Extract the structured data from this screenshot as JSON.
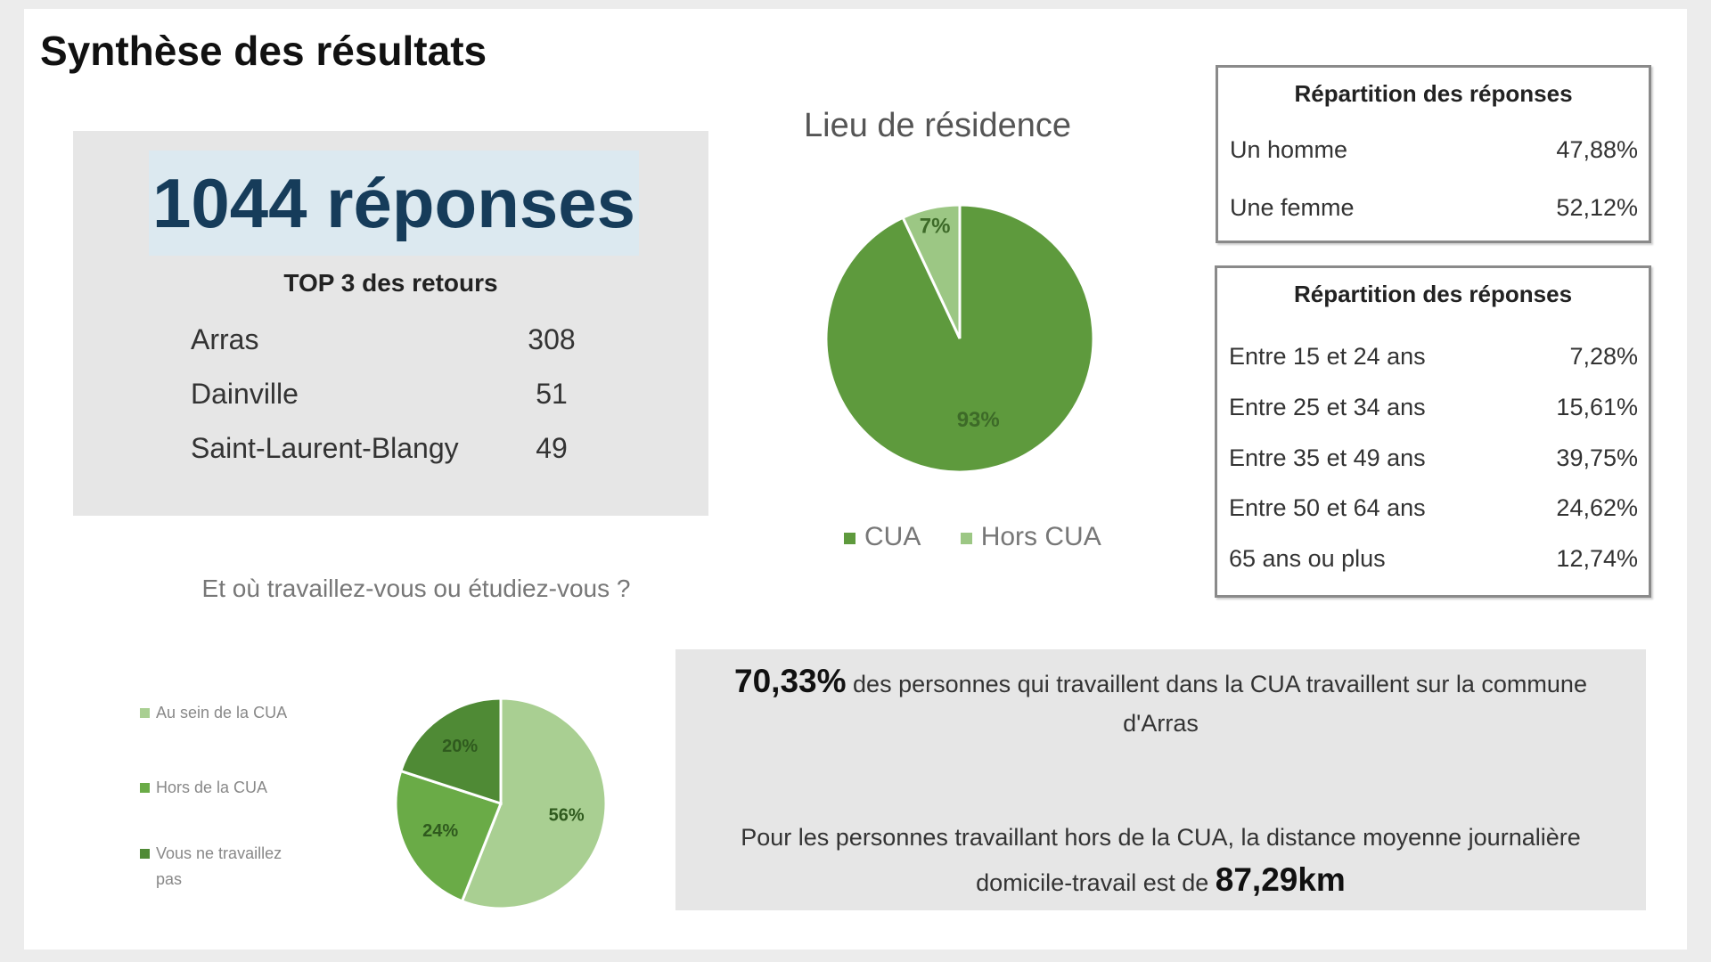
{
  "title": "Synthèse des résultats",
  "summary": {
    "total_label": "1044 réponses",
    "top3_title": "TOP 3 des retours",
    "top3": [
      {
        "name": "Arras",
        "value": "308"
      },
      {
        "name": "Dainville",
        "value": "51"
      },
      {
        "name": "Saint-Laurent-Blangy",
        "value": "49"
      }
    ]
  },
  "gender_table": {
    "title": "Répartition des réponses",
    "rows": [
      {
        "label": "Un homme",
        "value": "47,88%"
      },
      {
        "label": "Une femme",
        "value": "52,12%"
      }
    ]
  },
  "age_table": {
    "title": "Répartition des réponses",
    "rows": [
      {
        "label": "Entre 15 et 24 ans",
        "value": "7,28%"
      },
      {
        "label": "Entre 25 et 34 ans",
        "value": "15,61%"
      },
      {
        "label": "Entre 35 et 49 ans",
        "value": "39,75%"
      },
      {
        "label": "Entre 50 et 64 ans",
        "value": "24,62%"
      },
      {
        "label": "65 ans ou plus",
        "value": "12,74%"
      }
    ]
  },
  "info": {
    "line1_value": "70,33%",
    "line1_text": " des personnes qui travaillent dans la CUA travaillent sur la commune d'Arras",
    "line2_text": "Pour les personnes travaillant hors de la CUA, la distance moyenne journalière domicile-travail est de ",
    "line2_value": "87,29km"
  },
  "chart_data": [
    {
      "type": "pie",
      "title": "Lieu de résidence",
      "categories": [
        "CUA",
        "Hors CUA"
      ],
      "values": [
        93,
        7
      ],
      "labels": [
        "93%",
        "7%"
      ],
      "colors": [
        "#5e9a3d",
        "#9cc784"
      ],
      "legend": "bottom"
    },
    {
      "type": "pie",
      "title": "Et où travaillez-vous ou étudiez-vous ?",
      "categories": [
        "Au sein de la CUA",
        "Hors de la CUA",
        "Vous ne travaillez pas"
      ],
      "values": [
        56,
        24,
        20
      ],
      "labels": [
        "56%",
        "24%",
        "20%"
      ],
      "colors": [
        "#a9cf92",
        "#6aab47",
        "#4f8a35"
      ],
      "legend": "left"
    }
  ]
}
